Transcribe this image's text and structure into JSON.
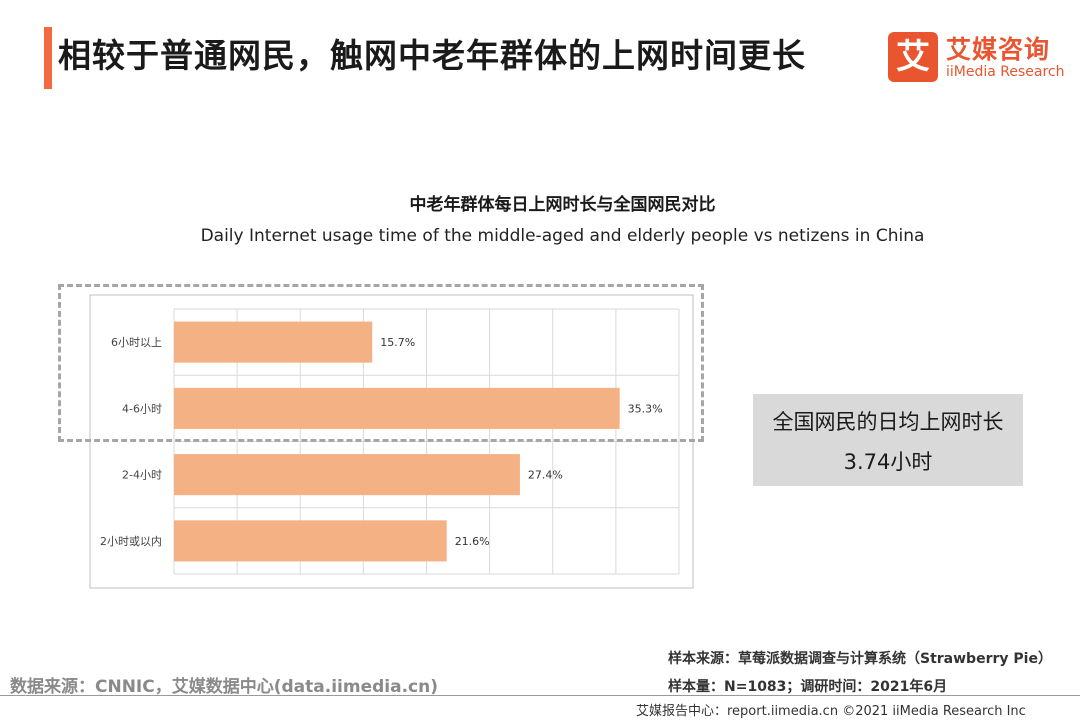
{
  "header": {
    "title": "相较于普通网民，触网中老年群体的上网时间更长",
    "accent_color": "#f26a3d"
  },
  "logo": {
    "mark": "艾",
    "cn": "艾媒咨询",
    "en": "iiMedia Research",
    "color": "#e8552f"
  },
  "summary": {
    "label": "全国网民的日均上网时长",
    "value": "3.74小时",
    "bg_color": "#d9d9d9"
  },
  "notes": {
    "sample_source": "样本来源：草莓派数据调查与计算系统（Strawberry Pie）",
    "sample_size": "样本量：N=1083；调研时间：2021年6月",
    "data_source": "数据来源：CNNIC，艾媒数据中心(data.iimedia.cn)",
    "footer": "艾媒报告中心：report.iimedia.cn   ©2021  iiMedia Research  Inc"
  },
  "chart_data": {
    "type": "bar",
    "orientation": "horizontal",
    "title": "中老年群体每日上网时长与全国网民对比",
    "subtitle": "Daily Internet usage time of the middle-aged and elderly people vs netizens in China",
    "categories": [
      "6小时以上",
      "4-6小时",
      "2-4小时",
      "2小时或以内"
    ],
    "values": [
      15.7,
      35.3,
      27.4,
      21.6
    ],
    "labels": [
      "15.7%",
      "35.3%",
      "27.4%",
      "21.6%"
    ],
    "unit": "%",
    "xlim": [
      0,
      40
    ],
    "grid": true,
    "bar_color": "#f4b183",
    "highlighted_categories": [
      "6小时以上",
      "4-6小时"
    ]
  }
}
